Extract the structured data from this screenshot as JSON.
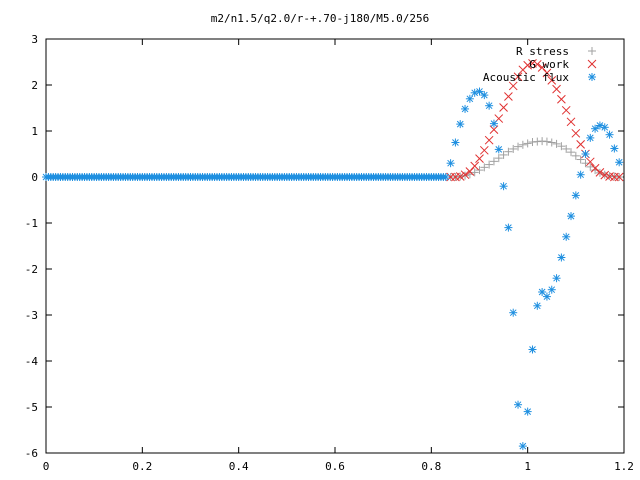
{
  "chart_data": {
    "type": "scatter",
    "title": "m2/n1.5/q2.0/r-+.70-j180/M5.0/256",
    "xlabel": "",
    "ylabel": "",
    "xlim": [
      0,
      1.2
    ],
    "ylim": [
      -6,
      3
    ],
    "xticks": [
      "0",
      "0.2",
      "0.4",
      "0.6",
      "0.8",
      "1",
      "1.2"
    ],
    "yticks": [
      "3",
      "2",
      "1",
      "0",
      "-1",
      "-2",
      "-3",
      "-4",
      "-5",
      "-6"
    ],
    "legend_position": "top-right",
    "grid": false,
    "series": [
      {
        "name": "R stress",
        "marker": "plus",
        "color": "#a0a0a0",
        "x": [
          0.84,
          0.85,
          0.86,
          0.87,
          0.88,
          0.89,
          0.9,
          0.91,
          0.92,
          0.93,
          0.94,
          0.95,
          0.96,
          0.97,
          0.98,
          0.99,
          1.0,
          1.01,
          1.02,
          1.03,
          1.04,
          1.05,
          1.06,
          1.07,
          1.08,
          1.09,
          1.1,
          1.11,
          1.12,
          1.13,
          1.14,
          1.15,
          1.16,
          1.17,
          1.18,
          1.19
        ],
        "y": [
          0.0,
          0.0,
          0.01,
          0.03,
          0.06,
          0.1,
          0.15,
          0.21,
          0.27,
          0.34,
          0.41,
          0.48,
          0.55,
          0.61,
          0.66,
          0.7,
          0.73,
          0.76,
          0.77,
          0.78,
          0.77,
          0.75,
          0.72,
          0.67,
          0.61,
          0.54,
          0.46,
          0.38,
          0.3,
          0.22,
          0.15,
          0.09,
          0.05,
          0.02,
          0.01,
          0.0
        ]
      },
      {
        "name": "G work",
        "marker": "cross",
        "color": "#e03030",
        "x": [
          0.84,
          0.85,
          0.86,
          0.87,
          0.88,
          0.89,
          0.9,
          0.91,
          0.92,
          0.93,
          0.94,
          0.95,
          0.96,
          0.97,
          0.98,
          0.99,
          1.0,
          1.01,
          1.02,
          1.03,
          1.04,
          1.05,
          1.06,
          1.07,
          1.08,
          1.09,
          1.1,
          1.11,
          1.12,
          1.13,
          1.14,
          1.15,
          1.16,
          1.17,
          1.18,
          1.19
        ],
        "y": [
          0.0,
          0.0,
          0.01,
          0.05,
          0.12,
          0.24,
          0.4,
          0.58,
          0.8,
          1.03,
          1.27,
          1.51,
          1.75,
          1.98,
          2.18,
          2.33,
          2.43,
          2.47,
          2.45,
          2.38,
          2.26,
          2.1,
          1.91,
          1.69,
          1.45,
          1.2,
          0.95,
          0.71,
          0.5,
          0.33,
          0.19,
          0.1,
          0.04,
          0.01,
          0.0,
          0.0
        ]
      },
      {
        "name": "Acoustic flux",
        "marker": "star",
        "color": "#1e8fe0",
        "x": [
          0.84,
          0.85,
          0.86,
          0.87,
          0.88,
          0.89,
          0.9,
          0.91,
          0.92,
          0.93,
          0.94,
          0.95,
          0.96,
          0.97,
          0.98,
          0.99,
          1.0,
          1.01,
          1.02,
          1.03,
          1.04,
          1.05,
          1.06,
          1.07,
          1.08,
          1.09,
          1.1,
          1.11,
          1.12,
          1.13,
          1.14,
          1.15,
          1.16,
          1.17,
          1.18,
          1.19
        ],
        "y": [
          0.3,
          0.75,
          1.15,
          1.48,
          1.7,
          1.83,
          1.86,
          1.78,
          1.55,
          1.16,
          0.6,
          -0.2,
          -1.1,
          -2.95,
          -4.95,
          -5.85,
          -5.1,
          -3.75,
          -2.8,
          -2.5,
          -2.6,
          -2.45,
          -2.2,
          -1.75,
          -1.3,
          -0.85,
          -0.4,
          0.05,
          0.5,
          0.85,
          1.05,
          1.12,
          1.08,
          0.92,
          0.62,
          0.32
        ],
        "baseline_from": 0.0,
        "baseline_to": 0.83,
        "baseline_step": 0.005,
        "baseline_value": 0.0
      }
    ]
  }
}
